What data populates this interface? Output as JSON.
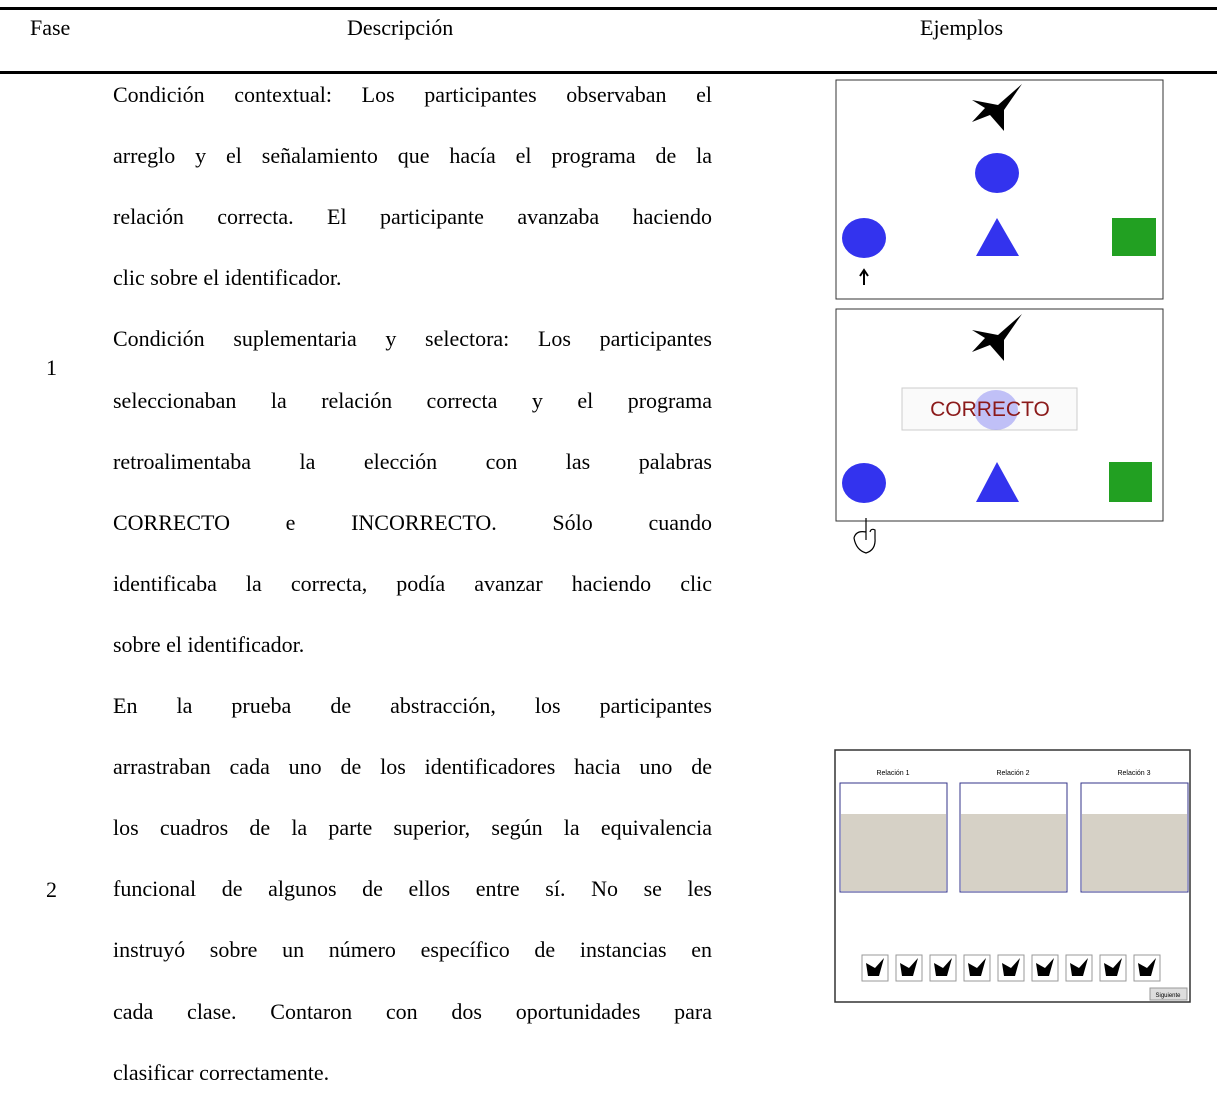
{
  "header": {
    "fase": "Fase",
    "descripcion": "Descripción",
    "ejemplos": "Ejemplos"
  },
  "rows": [
    {
      "fase": "1",
      "paragraphs": [
        [
          "Condición contextual: Los participantes observaban el",
          "arreglo y el señalamiento que hacía el programa de la",
          "relación correcta. El participante avanzaba haciendo",
          "clic sobre el identificador."
        ],
        [
          "Condición suplementaria y selectora: Los participantes",
          "seleccionaban la relación correcta y el programa",
          "retroalimentaba la elección con las palabras",
          "CORRECTO e INCORRECTO. Sólo cuando",
          "identificaba la correcta, podía avanzar haciendo clic",
          "sobre el identificador."
        ]
      ],
      "example_feedback": "CORRECTO"
    },
    {
      "fase": "2",
      "paragraphs": [
        [
          "En la prueba de abstracción, los participantes",
          "arrastraban cada uno de los identificadores hacia uno de",
          "los cuadros de la parte superior, según la equivalencia",
          "funcional de algunos de ellos entre sí. No se les",
          "instruyó sobre un número específico de instancias en",
          "cada clase. Contaron con dos oportunidades para",
          "clasificar correctamente."
        ]
      ],
      "example_boxes": [
        "Relación 1",
        "Relación 2",
        "Relación 3"
      ],
      "example_button": "Siguiente"
    }
  ]
}
